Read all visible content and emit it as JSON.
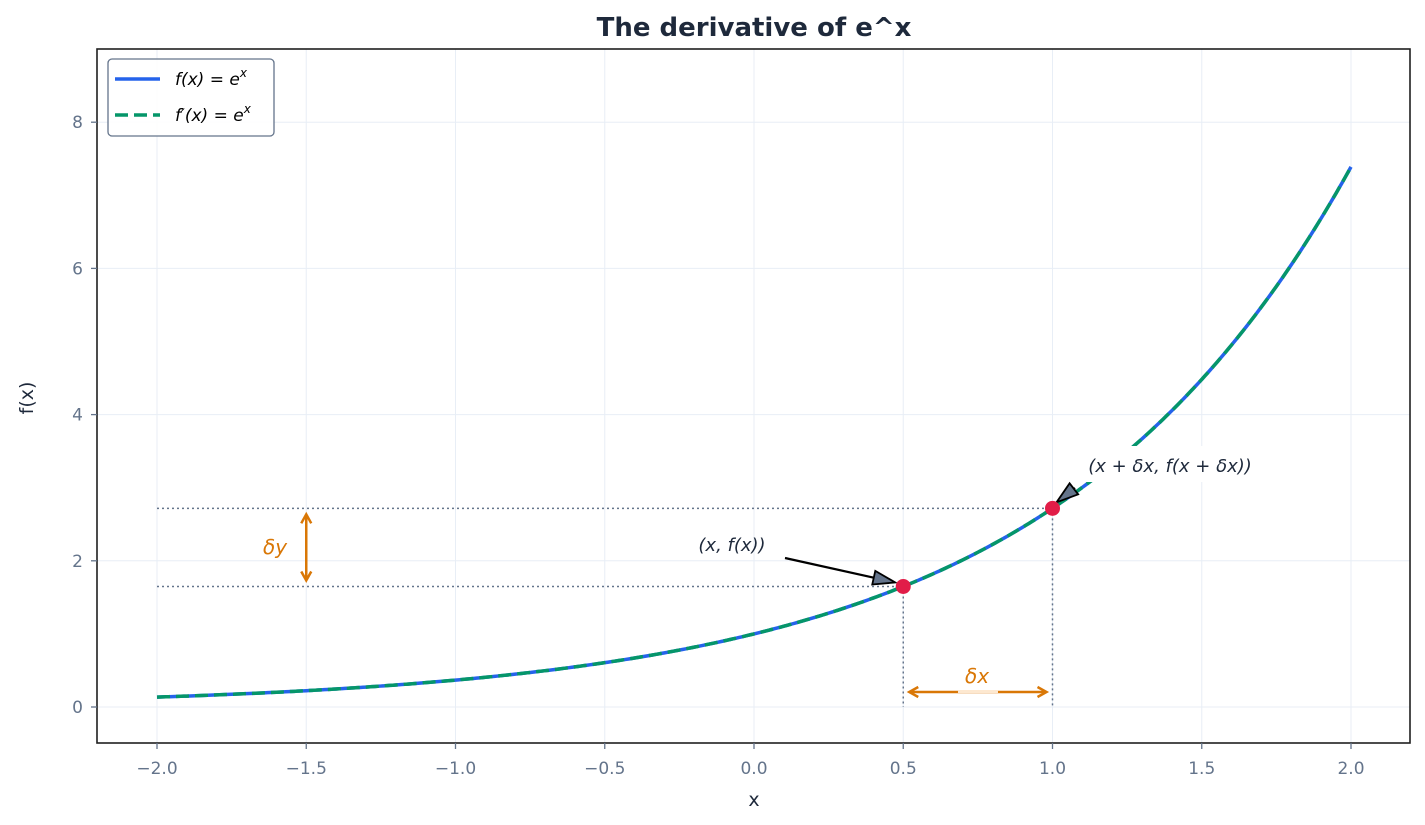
{
  "chart_data": {
    "type": "line",
    "title": "The derivative of e^x",
    "xlabel": "x",
    "ylabel": "f(x)",
    "xlim": [
      -2.2,
      2.2
    ],
    "ylim": [
      -0.5,
      9.0
    ],
    "xticks": [
      -2.0,
      -1.5,
      -1.0,
      -0.5,
      0.0,
      0.5,
      1.0,
      1.5,
      2.0
    ],
    "xtick_labels": [
      "−2.0",
      "−1.5",
      "−1.0",
      "−0.5",
      "0.0",
      "0.5",
      "1.0",
      "1.5",
      "2.0"
    ],
    "yticks": [
      0,
      2,
      4,
      6,
      8
    ],
    "ytick_labels": [
      "0",
      "2",
      "4",
      "6",
      "8"
    ],
    "grid": true,
    "legend_position": "upper left",
    "series": [
      {
        "name": "f(x) = e^x",
        "function": "exp",
        "x_range": [
          -2.0,
          2.0
        ],
        "color": "#2563eb",
        "style": "solid"
      },
      {
        "name": "f'(x) = e^x",
        "function": "exp",
        "x_range": [
          -2.0,
          2.0
        ],
        "color": "#059669",
        "style": "dashed"
      }
    ],
    "sample_points": {
      "x": [
        -2.0,
        -1.5,
        -1.0,
        -0.5,
        0.0,
        0.5,
        1.0,
        1.5,
        2.0
      ],
      "y": [
        0.135,
        0.223,
        0.368,
        0.607,
        1.0,
        1.649,
        2.718,
        4.482,
        7.389
      ]
    },
    "highlight_points": [
      {
        "x": 0.5,
        "y": 1.649,
        "label": "(x, f(x))",
        "color": "#e11d48"
      },
      {
        "x": 1.0,
        "y": 2.718,
        "label": "(x + δx, f(x + δx))",
        "color": "#e11d48"
      }
    ],
    "annotations": [
      {
        "text": "δy",
        "type": "vertical-double-arrow",
        "x": -1.5,
        "y_from": 1.649,
        "y_to": 2.718,
        "color": "#d97706"
      },
      {
        "text": "δx",
        "type": "horizontal-double-arrow",
        "y": 0.2,
        "x_from": 0.5,
        "x_to": 1.0,
        "color": "#d97706"
      }
    ]
  },
  "legend": {
    "item1": "f(x) = e",
    "item1_sup": "x",
    "item2": "f′(x) = e",
    "item2_sup": "x"
  },
  "colors": {
    "f_line": "#2563eb",
    "fprime_line": "#059669",
    "point": "#e11d48",
    "delta": "#d97706",
    "guide": "#64748b"
  }
}
